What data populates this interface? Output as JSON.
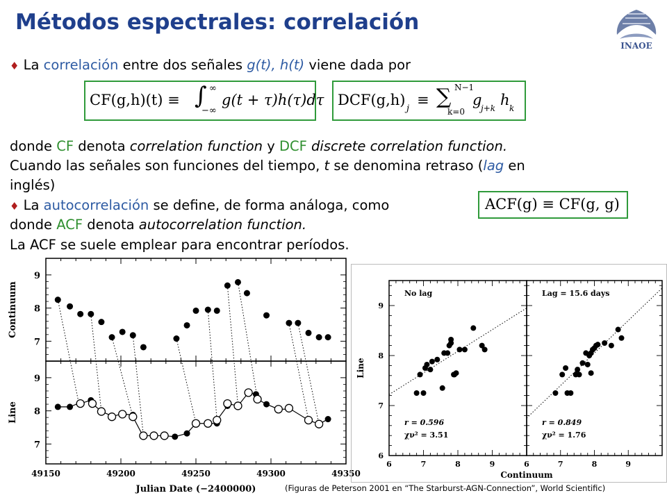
{
  "title": "Métodos espectrales: correlación",
  "logo_text": "INAOE",
  "paragraph1": {
    "bullet": "♦",
    "pre": "La ",
    "term": "correlación",
    "mid": " entre dos señales ",
    "vars": "g(t), h(t)",
    "post": " viene dada por"
  },
  "formulas": {
    "cf": {
      "lhs": "CF(g,h)(t) ≡",
      "upper": "∞",
      "lower": "−∞",
      "body": "g(t + τ)h(τ)dτ"
    },
    "dcf": {
      "lhs": "DCF(g,h)",
      "sub": "j",
      "eq": "≡",
      "upper": "N−1",
      "lower": "k=0",
      "body": "g",
      "sub2": "j+k",
      "body2": "h",
      "sub3": "k"
    },
    "acf": {
      "text": "ACF(g) ≡ CF(g, g)"
    }
  },
  "line_donde": {
    "pre": "donde ",
    "cf": "CF",
    "mid": " denota ",
    "cf_name": "correlation function",
    "y": " y ",
    "dcf": "DCF",
    "dcf_name": "discrete correlation function."
  },
  "line_cuando1": {
    "pre": "Cuando las señales son funciones del tiempo, ",
    "t": "t",
    "post": " se denomina retraso (",
    "lag": "lag",
    "en": " en"
  },
  "line_cuando2": "inglés)",
  "line_auto": {
    "bullet": "♦",
    "pre": "La ",
    "term": "autocorrelación",
    "post": " se define, de forma análoga, como"
  },
  "line_donde2": {
    "pre": "donde ",
    "acf": "ACF",
    "mid": " denota ",
    "name": "autocorrelation function."
  },
  "line_last": "La ACF se suele emplear para encontrar períodos.",
  "caption": "(Figuras de Peterson 2001 en “The Starburst-AGN-Connection”,  World Scientific)",
  "chart_data": [
    {
      "type": "scatter",
      "panels": [
        {
          "ylabel": "Continuum",
          "ylim": [
            6.4,
            9.5
          ],
          "yticks": [
            "7",
            "8",
            "9"
          ],
          "filled": [
            [
              49158,
              8.25
            ],
            [
              49166,
              8.05
            ],
            [
              49173,
              7.82
            ],
            [
              49180,
              7.82
            ],
            [
              49187,
              7.58
            ],
            [
              49194,
              7.12
            ],
            [
              49201,
              7.28
            ],
            [
              49208,
              7.18
            ],
            [
              49215,
              6.82
            ],
            [
              49237,
              7.08
            ],
            [
              49244,
              7.48
            ],
            [
              49250,
              7.92
            ],
            [
              49258,
              7.95
            ],
            [
              49264,
              7.92
            ],
            [
              49271,
              8.68
            ],
            [
              49278,
              8.78
            ],
            [
              49284,
              8.45
            ],
            [
              49297,
              7.78
            ],
            [
              49312,
              7.55
            ],
            [
              49318,
              7.55
            ],
            [
              49325,
              7.25
            ],
            [
              49332,
              7.12
            ],
            [
              49338,
              7.12
            ]
          ]
        },
        {
          "ylabel": "Line",
          "ylim": [
            6.4,
            9.5
          ],
          "yticks": [
            "7",
            "8",
            "9"
          ],
          "filled": [
            [
              49158,
              8.12
            ],
            [
              49166,
              8.12
            ],
            [
              49173,
              8.25
            ],
            [
              49180,
              8.32
            ],
            [
              49194,
              7.85
            ],
            [
              49201,
              7.92
            ],
            [
              49208,
              7.88
            ],
            [
              49215,
              7.22
            ],
            [
              49236,
              7.22
            ],
            [
              49244,
              7.32
            ],
            [
              49250,
              7.62
            ],
            [
              49258,
              7.62
            ],
            [
              49264,
              7.62
            ],
            [
              49271,
              8.15
            ],
            [
              49285,
              8.55
            ],
            [
              49290,
              8.5
            ],
            [
              49297,
              8.2
            ],
            [
              49312,
              8.05
            ],
            [
              49325,
              7.72
            ],
            [
              49338,
              7.75
            ]
          ],
          "open": [
            [
              49173,
              8.22
            ],
            [
              49181,
              8.22
            ],
            [
              49187,
              7.98
            ],
            [
              49194,
              7.82
            ],
            [
              49201,
              7.9
            ],
            [
              49208,
              7.82
            ],
            [
              49215,
              7.25
            ],
            [
              49222,
              7.25
            ],
            [
              49229,
              7.25
            ],
            [
              49250,
              7.62
            ],
            [
              49258,
              7.62
            ],
            [
              49264,
              7.72
            ],
            [
              49271,
              8.22
            ],
            [
              49278,
              8.15
            ],
            [
              49285,
              8.55
            ],
            [
              49291,
              8.35
            ],
            [
              49305,
              8.05
            ],
            [
              49312,
              8.08
            ],
            [
              49325,
              7.72
            ],
            [
              49332,
              7.6
            ]
          ],
          "lag_arrows": [
            [
              49158,
              8.25,
              49172,
              8.22
            ],
            [
              49180,
              7.82,
              49187,
              7.98
            ],
            [
              49194,
              7.12,
              49208,
              7.82
            ],
            [
              49208,
              7.18,
              49215,
              7.25
            ],
            [
              49237,
              7.08,
              49250,
              7.62
            ],
            [
              49258,
              7.95,
              49264,
              7.72
            ],
            [
              49271,
              8.68,
              49278,
              8.15
            ],
            [
              49278,
              8.78,
              49291,
              8.35
            ],
            [
              49312,
              7.55,
              49325,
              7.72
            ],
            [
              49318,
              7.55,
              49332,
              7.6
            ]
          ]
        }
      ],
      "xlabel": "Julian Date (−2400000)",
      "xlim": [
        49150,
        49350
      ],
      "xticks": [
        "49150",
        "49200",
        "49250",
        "49300",
        "49350"
      ]
    },
    {
      "type": "scatter",
      "ylabel": "Line",
      "xlabel": "Continuum",
      "xlim": [
        6,
        10
      ],
      "ylim": [
        6,
        9.5
      ],
      "yticks": [
        "6",
        "7",
        "8",
        "9"
      ],
      "xticks": [
        "6",
        "7",
        "8",
        "9"
      ],
      "panels": [
        {
          "label": "No lag",
          "stat_r": "r = 0.596",
          "stat_chi": "χν² = 3.51",
          "fit": [
            [
              6,
              7.22
            ],
            [
              10,
              8.95
            ]
          ],
          "points": [
            [
              6.8,
              7.25
            ],
            [
              6.9,
              7.62
            ],
            [
              7.0,
              7.25
            ],
            [
              7.05,
              7.75
            ],
            [
              7.1,
              7.82
            ],
            [
              7.2,
              7.72
            ],
            [
              7.25,
              7.88
            ],
            [
              7.4,
              7.92
            ],
            [
              7.55,
              7.35
            ],
            [
              7.6,
              8.05
            ],
            [
              7.7,
              8.05
            ],
            [
              7.75,
              8.2
            ],
            [
              7.8,
              8.25
            ],
            [
              7.8,
              8.32
            ],
            [
              7.9,
              7.62
            ],
            [
              7.95,
              7.65
            ],
            [
              8.05,
              8.12
            ],
            [
              8.2,
              8.12
            ],
            [
              8.45,
              8.55
            ],
            [
              8.7,
              8.2
            ],
            [
              8.78,
              8.12
            ],
            [
              7.88,
              7.62
            ]
          ]
        },
        {
          "label": "Lag = 15.6 days",
          "stat_r": "r = 0.849",
          "stat_chi": "χν² = 1.76",
          "fit": [
            [
              6,
              6.75
            ],
            [
              10,
              9.35
            ]
          ],
          "points": [
            [
              6.85,
              7.25
            ],
            [
              7.05,
              7.62
            ],
            [
              7.15,
              7.75
            ],
            [
              7.2,
              7.25
            ],
            [
              7.3,
              7.25
            ],
            [
              7.45,
              7.62
            ],
            [
              7.5,
              7.72
            ],
            [
              7.55,
              7.62
            ],
            [
              7.65,
              7.85
            ],
            [
              7.75,
              8.05
            ],
            [
              7.8,
              7.82
            ],
            [
              7.85,
              8.0
            ],
            [
              7.9,
              8.05
            ],
            [
              7.95,
              8.12
            ],
            [
              8.0,
              8.15
            ],
            [
              8.05,
              8.2
            ],
            [
              8.1,
              8.22
            ],
            [
              8.3,
              8.25
            ],
            [
              8.5,
              8.2
            ],
            [
              8.7,
              8.52
            ],
            [
              8.8,
              8.35
            ],
            [
              7.9,
              7.65
            ]
          ]
        }
      ]
    }
  ]
}
